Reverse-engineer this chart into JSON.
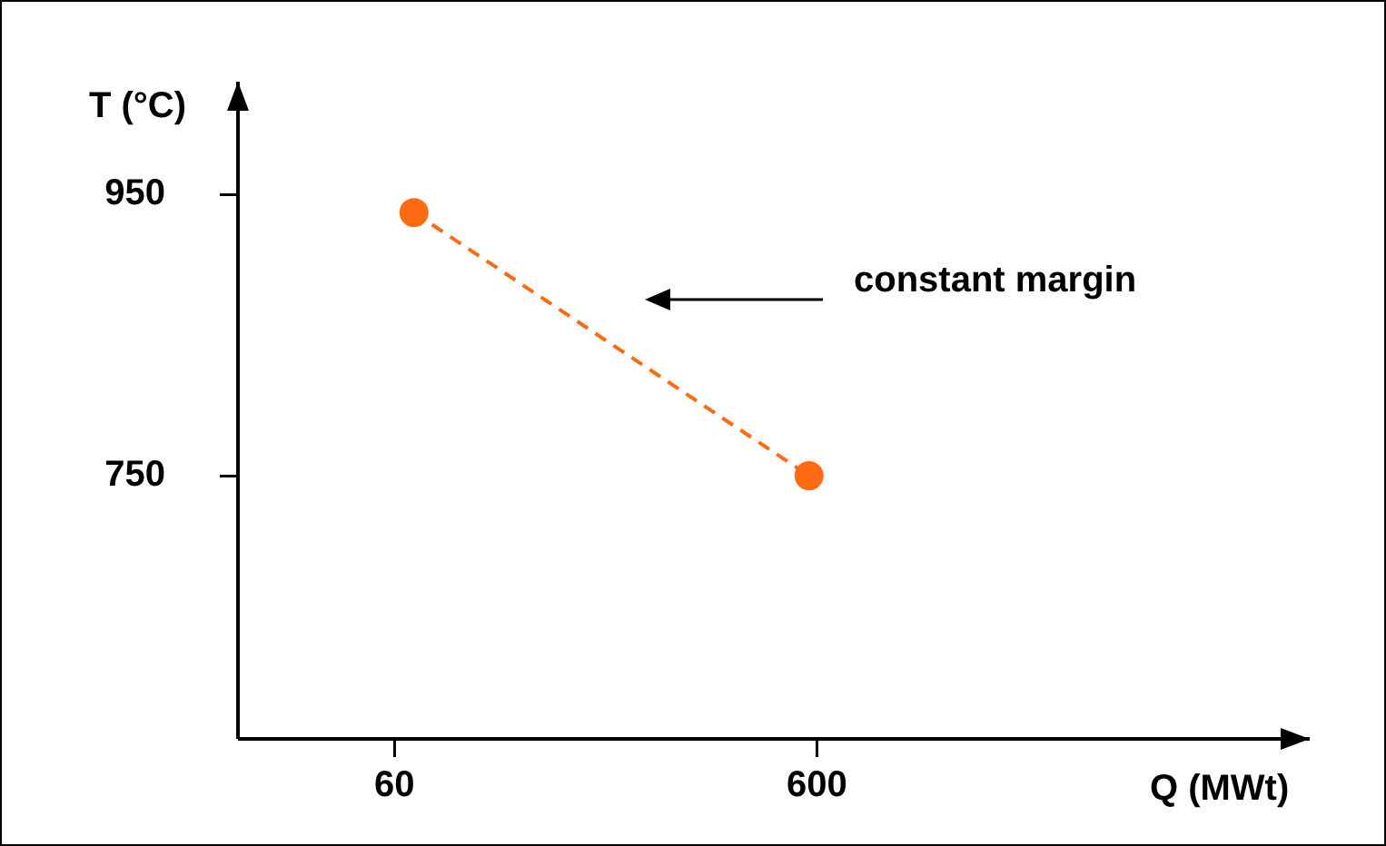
{
  "chart_data": {
    "type": "line",
    "xlabel": "Q (MWt)",
    "ylabel": "T (°C)",
    "x": [
      85,
      590
    ],
    "values": [
      937,
      750
    ],
    "color": "#ff6a13",
    "xlim": [
      -140,
      1230
    ],
    "ylim": [
      563,
      1030
    ],
    "xticks": [
      60,
      600
    ],
    "yticks": [
      750,
      950
    ],
    "marker": "circle",
    "line_style": "dashed",
    "grid": false,
    "legend": false,
    "annotations": [
      "constant margin"
    ]
  }
}
